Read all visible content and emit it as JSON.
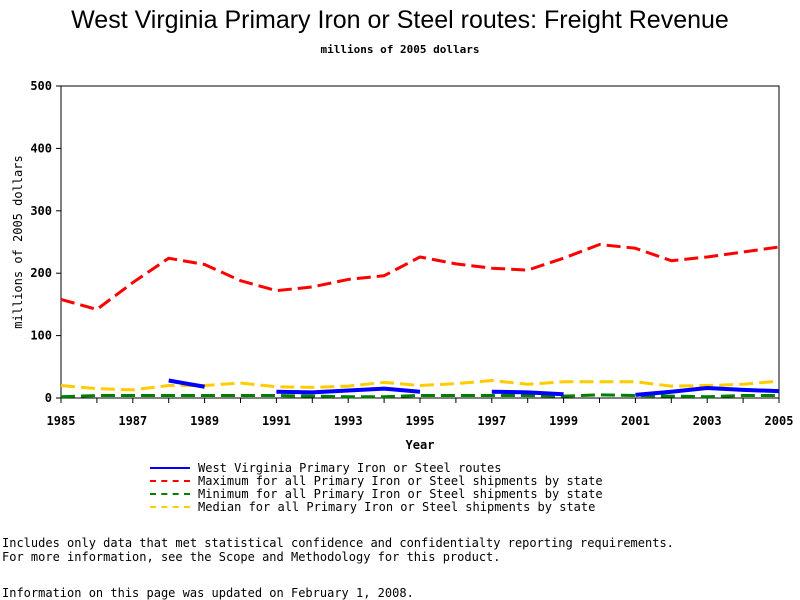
{
  "chart_data": {
    "type": "line",
    "title": "West Virginia Primary Iron or Steel routes: Freight Revenue",
    "subtitle": "millions of 2005 dollars",
    "xlabel": "Year",
    "ylabel": "millions of 2005 dollars",
    "xlim": [
      1985,
      2005
    ],
    "ylim": [
      0,
      500
    ],
    "x_ticks": [
      1985,
      1987,
      1989,
      1991,
      1993,
      1995,
      1997,
      1999,
      2001,
      2003,
      2005
    ],
    "y_ticks": [
      0,
      100,
      200,
      300,
      400,
      500
    ],
    "grid": false,
    "legend_position": "bottom",
    "series": [
      {
        "name": "West Virginia Primary Iron or Steel routes",
        "color": "#0000ff",
        "dash": "solid",
        "x": [
          1988,
          1989,
          1990,
          1991,
          1992,
          1993,
          1994,
          1995,
          1996,
          1997,
          1998,
          1999,
          2000,
          2001,
          2002,
          2003,
          2004,
          2005
        ],
        "y": [
          28,
          18,
          null,
          10,
          9,
          12,
          15,
          10,
          null,
          10,
          9,
          6,
          null,
          5,
          10,
          16,
          13,
          11
        ]
      },
      {
        "name": "Maximum for all Primary Iron or Steel shipments by state",
        "color": "#ff0000",
        "dash": "dashed",
        "x": [
          1985,
          1986,
          1987,
          1988,
          1989,
          1990,
          1991,
          1992,
          1993,
          1994,
          1995,
          1996,
          1997,
          1998,
          1999,
          2000,
          2001,
          2002,
          2003,
          2004,
          2005
        ],
        "y": [
          158,
          142,
          185,
          224,
          214,
          188,
          172,
          178,
          190,
          196,
          226,
          215,
          208,
          205,
          224,
          246,
          240,
          220,
          226,
          234,
          242
        ]
      },
      {
        "name": "Minimum for all Primary Iron or Steel shipments by state",
        "color": "#008000",
        "dash": "dashed",
        "x": [
          1985,
          1986,
          1987,
          1988,
          1989,
          1990,
          1991,
          1992,
          1993,
          1994,
          1995,
          1996,
          1997,
          1998,
          1999,
          2000,
          2001,
          2002,
          2003,
          2004,
          2005
        ],
        "y": [
          2,
          4,
          4,
          4,
          4,
          4,
          4,
          3,
          2,
          2,
          4,
          4,
          4,
          4,
          3,
          5,
          4,
          3,
          2,
          4,
          4
        ]
      },
      {
        "name": "Median for all Primary Iron or Steel shipments by state",
        "color": "#ffcc00",
        "dash": "dashed",
        "x": [
          1985,
          1986,
          1987,
          1988,
          1989,
          1990,
          1991,
          1992,
          1993,
          1994,
          1995,
          1996,
          1997,
          1998,
          1999,
          2000,
          2001,
          2002,
          2003,
          2004,
          2005
        ],
        "y": [
          20,
          15,
          13,
          20,
          20,
          24,
          18,
          17,
          19,
          25,
          20,
          23,
          28,
          22,
          26,
          26,
          26,
          19,
          20,
          22,
          27
        ]
      }
    ]
  },
  "footnotes": [
    "Includes only data that met statistical confidence and confidentialty reporting requirements.",
    "For more information, see the Scope and Methodology for this product."
  ],
  "updated_note": "Information on this page was updated on February 1, 2008."
}
